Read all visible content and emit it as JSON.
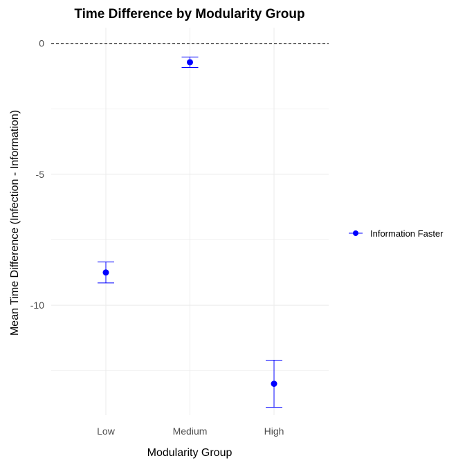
{
  "chart_data": {
    "type": "scatter",
    "title": "Time Difference by Modularity Group",
    "xlabel": "Modularity Group",
    "ylabel": "Mean Time Difference (Infection - Information)",
    "categories": [
      "Low",
      "Medium",
      "High"
    ],
    "series": [
      {
        "name": "Information Faster",
        "color": "#0000ff",
        "values": [
          -8.75,
          -0.72,
          -13.0
        ],
        "error_low": [
          -9.15,
          -0.92,
          -13.9
        ],
        "error_high": [
          -8.35,
          -0.52,
          -12.1
        ]
      }
    ],
    "ylim": [
      -14.2,
      0.6
    ],
    "y_ticks": [
      0,
      -5,
      -10
    ],
    "y_tick_labels": [
      "0",
      "-5",
      "-10"
    ],
    "reference_line": {
      "y": 0,
      "style": "dashed",
      "color": "#000000"
    },
    "grid": true,
    "legend_position": "right"
  }
}
